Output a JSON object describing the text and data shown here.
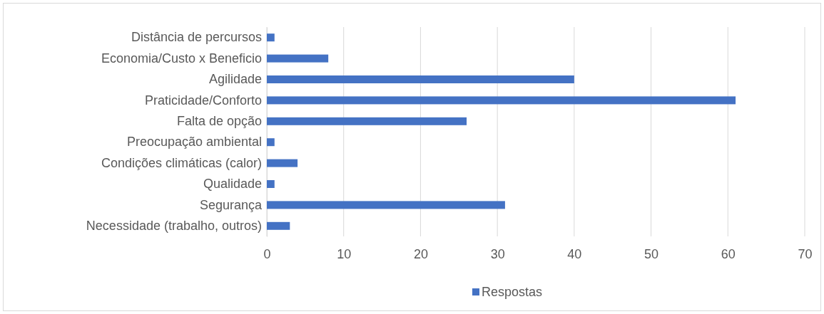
{
  "chart_data": {
    "type": "bar",
    "orientation": "horizontal",
    "categories": [
      "Distância de percursos",
      "Economia/Custo x Beneficio",
      "Agilidade",
      "Praticidade/Conforto",
      "Falta de opção",
      "Preocupação ambiental",
      "Condições climáticas (calor)",
      "Qualidade",
      "Segurança",
      "Necessidade (trabalho, outros)"
    ],
    "series": [
      {
        "name": "Respostas",
        "color": "#4472c4",
        "values": [
          1,
          8,
          40,
          61,
          26,
          1,
          4,
          1,
          31,
          3
        ]
      }
    ],
    "xlim": [
      0,
      70
    ],
    "xticks": [
      0,
      10,
      20,
      30,
      40,
      50,
      60,
      70
    ],
    "grid": "x",
    "legend": "bottom"
  }
}
